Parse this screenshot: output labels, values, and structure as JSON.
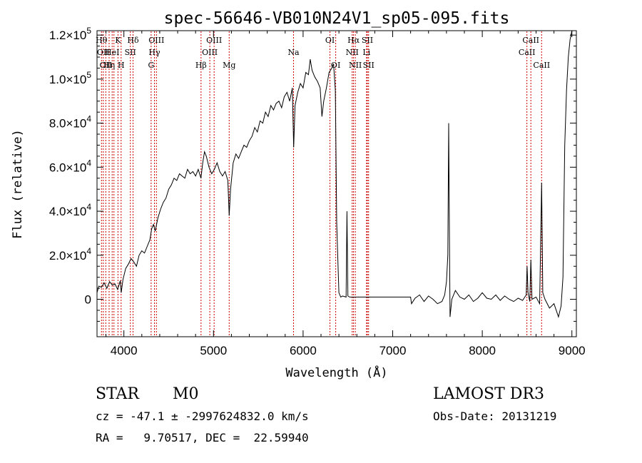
{
  "chart_data": {
    "type": "line",
    "title": "spec-56646-VB010N24V1_sp05-095.fits",
    "xlabel": "Wavelength (Å)",
    "ylabel": "Flux (relative)",
    "xlim": [
      3700,
      9050
    ],
    "ylim": [
      -17000,
      122000
    ],
    "x_ticks": [
      4000,
      5000,
      6000,
      7000,
      8000,
      9000
    ],
    "x_tick_labels": [
      "4000",
      "5000",
      "6000",
      "7000",
      "8000",
      "9000"
    ],
    "y_ticks": [
      0,
      20000,
      40000,
      60000,
      80000,
      100000,
      120000
    ],
    "y_tick_labels": [
      {
        "mant": "0",
        "exp": ""
      },
      {
        "mant": "2.0×10",
        "exp": "4"
      },
      {
        "mant": "4.0×10",
        "exp": "4"
      },
      {
        "mant": "6.0×10",
        "exp": "4"
      },
      {
        "mant": "8.0×10",
        "exp": "4"
      },
      {
        "mant": "1.0×10",
        "exp": "5"
      },
      {
        "mant": "1.2×10",
        "exp": "5"
      }
    ],
    "grid": false,
    "line_color": "#000000",
    "marker_color": "#cc0000",
    "spectrum": [
      [
        3700,
        3000
      ],
      [
        3720,
        6000
      ],
      [
        3750,
        5500
      ],
      [
        3780,
        7500
      ],
      [
        3810,
        5000
      ],
      [
        3840,
        8000
      ],
      [
        3870,
        6500
      ],
      [
        3900,
        7000
      ],
      [
        3930,
        4500
      ],
      [
        3960,
        8500
      ],
      [
        3970,
        3000
      ],
      [
        3990,
        9000
      ],
      [
        4020,
        14000
      ],
      [
        4050,
        16000
      ],
      [
        4080,
        18500
      ],
      [
        4110,
        17000
      ],
      [
        4140,
        15000
      ],
      [
        4170,
        20000
      ],
      [
        4200,
        22000
      ],
      [
        4230,
        21000
      ],
      [
        4260,
        24000
      ],
      [
        4290,
        27000
      ],
      [
        4310,
        32000
      ],
      [
        4330,
        34000
      ],
      [
        4350,
        31000
      ],
      [
        4380,
        37000
      ],
      [
        4410,
        41000
      ],
      [
        4440,
        44000
      ],
      [
        4470,
        46000
      ],
      [
        4500,
        50000
      ],
      [
        4530,
        52000
      ],
      [
        4560,
        55000
      ],
      [
        4590,
        54000
      ],
      [
        4620,
        57000
      ],
      [
        4650,
        56000
      ],
      [
        4680,
        55000
      ],
      [
        4710,
        59000
      ],
      [
        4740,
        57000
      ],
      [
        4770,
        58000
      ],
      [
        4800,
        56000
      ],
      [
        4830,
        59000
      ],
      [
        4860,
        55000
      ],
      [
        4880,
        62000
      ],
      [
        4900,
        67000
      ],
      [
        4920,
        65000
      ],
      [
        4950,
        60000
      ],
      [
        4980,
        57000
      ],
      [
        5010,
        59000
      ],
      [
        5040,
        62000
      ],
      [
        5070,
        58000
      ],
      [
        5100,
        56000
      ],
      [
        5130,
        58000
      ],
      [
        5160,
        54000
      ],
      [
        5175,
        38000
      ],
      [
        5190,
        50000
      ],
      [
        5220,
        62000
      ],
      [
        5250,
        66000
      ],
      [
        5280,
        64000
      ],
      [
        5310,
        67000
      ],
      [
        5340,
        70000
      ],
      [
        5370,
        69000
      ],
      [
        5400,
        72000
      ],
      [
        5430,
        74000
      ],
      [
        5460,
        78000
      ],
      [
        5490,
        76000
      ],
      [
        5520,
        81000
      ],
      [
        5550,
        80000
      ],
      [
        5580,
        85000
      ],
      [
        5610,
        83000
      ],
      [
        5640,
        88000
      ],
      [
        5670,
        86000
      ],
      [
        5700,
        89000
      ],
      [
        5730,
        90000
      ],
      [
        5760,
        87000
      ],
      [
        5790,
        92000
      ],
      [
        5820,
        94000
      ],
      [
        5850,
        90000
      ],
      [
        5880,
        96000
      ],
      [
        5895,
        69000
      ],
      [
        5910,
        88000
      ],
      [
        5940,
        94000
      ],
      [
        5970,
        98000
      ],
      [
        6000,
        96000
      ],
      [
        6030,
        103000
      ],
      [
        6060,
        102000
      ],
      [
        6080,
        109000
      ],
      [
        6100,
        104000
      ],
      [
        6130,
        101000
      ],
      [
        6160,
        99000
      ],
      [
        6190,
        96000
      ],
      [
        6210,
        83000
      ],
      [
        6230,
        90000
      ],
      [
        6260,
        96000
      ],
      [
        6290,
        103000
      ],
      [
        6320,
        105000
      ],
      [
        6340,
        107000
      ],
      [
        6360,
        95000
      ],
      [
        6375,
        35000
      ],
      [
        6390,
        15000
      ],
      [
        6400,
        3000
      ],
      [
        6420,
        1000
      ],
      [
        6440,
        1500
      ],
      [
        6480,
        1000
      ],
      [
        6490,
        40000
      ],
      [
        6500,
        1500
      ],
      [
        6520,
        1000
      ],
      [
        7200,
        1000
      ],
      [
        7210,
        -2000
      ],
      [
        7250,
        500
      ],
      [
        7300,
        2000
      ],
      [
        7350,
        -1000
      ],
      [
        7400,
        1500
      ],
      [
        7450,
        0
      ],
      [
        7500,
        -2000
      ],
      [
        7550,
        -1000
      ],
      [
        7580,
        2000
      ],
      [
        7600,
        8000
      ],
      [
        7615,
        20000
      ],
      [
        7625,
        80000
      ],
      [
        7630,
        50000
      ],
      [
        7640,
        -8000
      ],
      [
        7660,
        0
      ],
      [
        7700,
        4000
      ],
      [
        7750,
        1000
      ],
      [
        7800,
        0
      ],
      [
        7850,
        2000
      ],
      [
        7900,
        -1000
      ],
      [
        7950,
        500
      ],
      [
        8000,
        3000
      ],
      [
        8050,
        500
      ],
      [
        8100,
        0
      ],
      [
        8150,
        2000
      ],
      [
        8200,
        -500
      ],
      [
        8250,
        1500
      ],
      [
        8300,
        0
      ],
      [
        8350,
        -1000
      ],
      [
        8400,
        500
      ],
      [
        8450,
        -500
      ],
      [
        8490,
        2000
      ],
      [
        8500,
        15000
      ],
      [
        8510,
        3000
      ],
      [
        8530,
        -1000
      ],
      [
        8542,
        18000
      ],
      [
        8555,
        0
      ],
      [
        8600,
        1000
      ],
      [
        8640,
        -2000
      ],
      [
        8662,
        53000
      ],
      [
        8675,
        3000
      ],
      [
        8700,
        0
      ],
      [
        8750,
        -4000
      ],
      [
        8800,
        -2000
      ],
      [
        8850,
        -8000
      ],
      [
        8880,
        -3000
      ],
      [
        8900,
        10000
      ],
      [
        8920,
        70000
      ],
      [
        8940,
        95000
      ],
      [
        8960,
        110000
      ],
      [
        8980,
        118000
      ],
      [
        9000,
        122000
      ]
    ],
    "lines": [
      {
        "w": 3750,
        "label": "Hθ",
        "row": 1
      },
      {
        "w": 3770,
        "label": "OII",
        "row": 2
      },
      {
        "w": 3798,
        "label": "OII",
        "row": 3
      },
      {
        "w": 3835,
        "label": "Hη",
        "row": 3
      },
      {
        "w": 3869,
        "label": "HeI",
        "row": 2
      },
      {
        "w": 3889,
        "label": "",
        "row": 0
      },
      {
        "w": 3934,
        "label": "K",
        "row": 1
      },
      {
        "w": 3969,
        "label": "H",
        "row": 3
      },
      {
        "w": 4072,
        "label": "SII",
        "row": 2
      },
      {
        "w": 4102,
        "label": "Hδ",
        "row": 1
      },
      {
        "w": 4304,
        "label": "G",
        "row": 3
      },
      {
        "w": 4341,
        "label": "Hγ",
        "row": 2
      },
      {
        "w": 4363,
        "label": "OIII",
        "row": 1
      },
      {
        "w": 4861,
        "label": "Hβ",
        "row": 3
      },
      {
        "w": 4959,
        "label": "OIII",
        "row": 2
      },
      {
        "w": 5007,
        "label": "OIII",
        "row": 1
      },
      {
        "w": 5175,
        "label": "Mg",
        "row": 3
      },
      {
        "w": 5893,
        "label": "Na",
        "row": 2
      },
      {
        "w": 6300,
        "label": "OI",
        "row": 1
      },
      {
        "w": 6364,
        "label": "OI",
        "row": 3
      },
      {
        "w": 6548,
        "label": "NII",
        "row": 2
      },
      {
        "w": 6563,
        "label": "Hα",
        "row": 1
      },
      {
        "w": 6583,
        "label": "NII",
        "row": 3
      },
      {
        "w": 6708,
        "label": "Li",
        "row": 2
      },
      {
        "w": 6717,
        "label": "SII",
        "row": 1
      },
      {
        "w": 6731,
        "label": "SII",
        "row": 3
      },
      {
        "w": 8498,
        "label": "CaII",
        "row": 2
      },
      {
        "w": 8542,
        "label": "CaII",
        "row": 1
      },
      {
        "w": 8662,
        "label": "CaII",
        "row": 3
      }
    ]
  },
  "info": {
    "class": "STAR",
    "subclass": "M0",
    "survey": "LAMOST DR3",
    "cz": "cz = -47.1 ± -2997624832.0 km/s",
    "obs_date": "Obs-Date: 20131219",
    "radec": "RA =   9.70517, DEC =  22.59940"
  }
}
